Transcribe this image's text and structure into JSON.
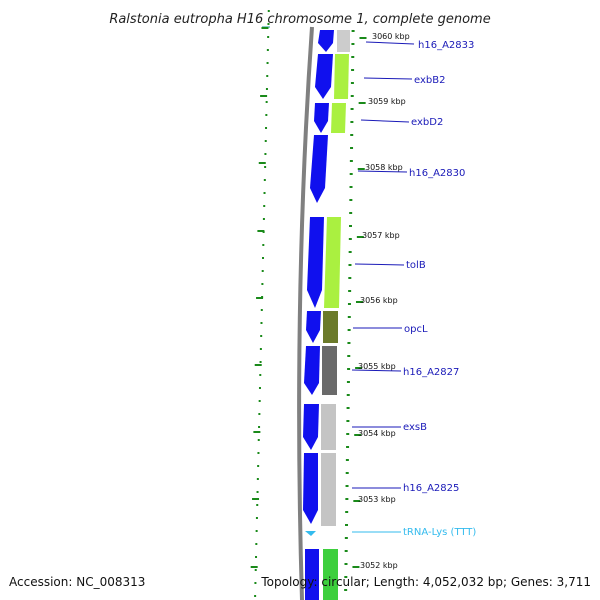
{
  "title": "Ralstonia eutropha H16 chromosome 1, complete genome",
  "footer": {
    "accession": "Accession: NC_008313",
    "topology": "Topology: circular; Length: 4,052,032 bp; Genes: 3,711"
  },
  "colors": {
    "gene_label": "#1a1ab8",
    "trna_label": "#33bbee",
    "forward_strand": "#1010ee",
    "backbone": "#808080",
    "tick": "#1a8a1a"
  },
  "kbp_ticks": [
    {
      "label": "3060 kbp",
      "kbp": 3060
    },
    {
      "label": "3059 kbp",
      "kbp": 3059
    },
    {
      "label": "3058 kbp",
      "kbp": 3058
    },
    {
      "label": "3057 kbp",
      "kbp": 3057
    },
    {
      "label": "3056 kbp",
      "kbp": 3056
    },
    {
      "label": "3055 kbp",
      "kbp": 3055
    },
    {
      "label": "3054 kbp",
      "kbp": 3054
    },
    {
      "label": "3053 kbp",
      "kbp": 3053
    },
    {
      "label": "3052 kbp",
      "kbp": 3052
    }
  ],
  "genes": [
    {
      "name": "h16_A2833",
      "type": "cds",
      "cog_color": "#cccccc"
    },
    {
      "name": "exbB2",
      "type": "cds",
      "cog_color": "#aaf040"
    },
    {
      "name": "exbD2",
      "type": "cds",
      "cog_color": "#aaf040"
    },
    {
      "name": "h16_A2830",
      "type": "cds",
      "cog_color": null
    },
    {
      "name": "tolB",
      "type": "cds",
      "cog_color": "#aaf040"
    },
    {
      "name": "opcL",
      "type": "cds",
      "cog_color": "#6b7a2a"
    },
    {
      "name": "h16_A2827",
      "type": "cds",
      "cog_color": "#6a6a6a"
    },
    {
      "name": "exsB",
      "type": "cds",
      "cog_color": "#c4c4c4"
    },
    {
      "name": "h16_A2825",
      "type": "cds",
      "cog_color": "#c4c4c4"
    },
    {
      "name": "tRNA-Lys (TTT)",
      "type": "trna",
      "cog_color": null
    }
  ]
}
